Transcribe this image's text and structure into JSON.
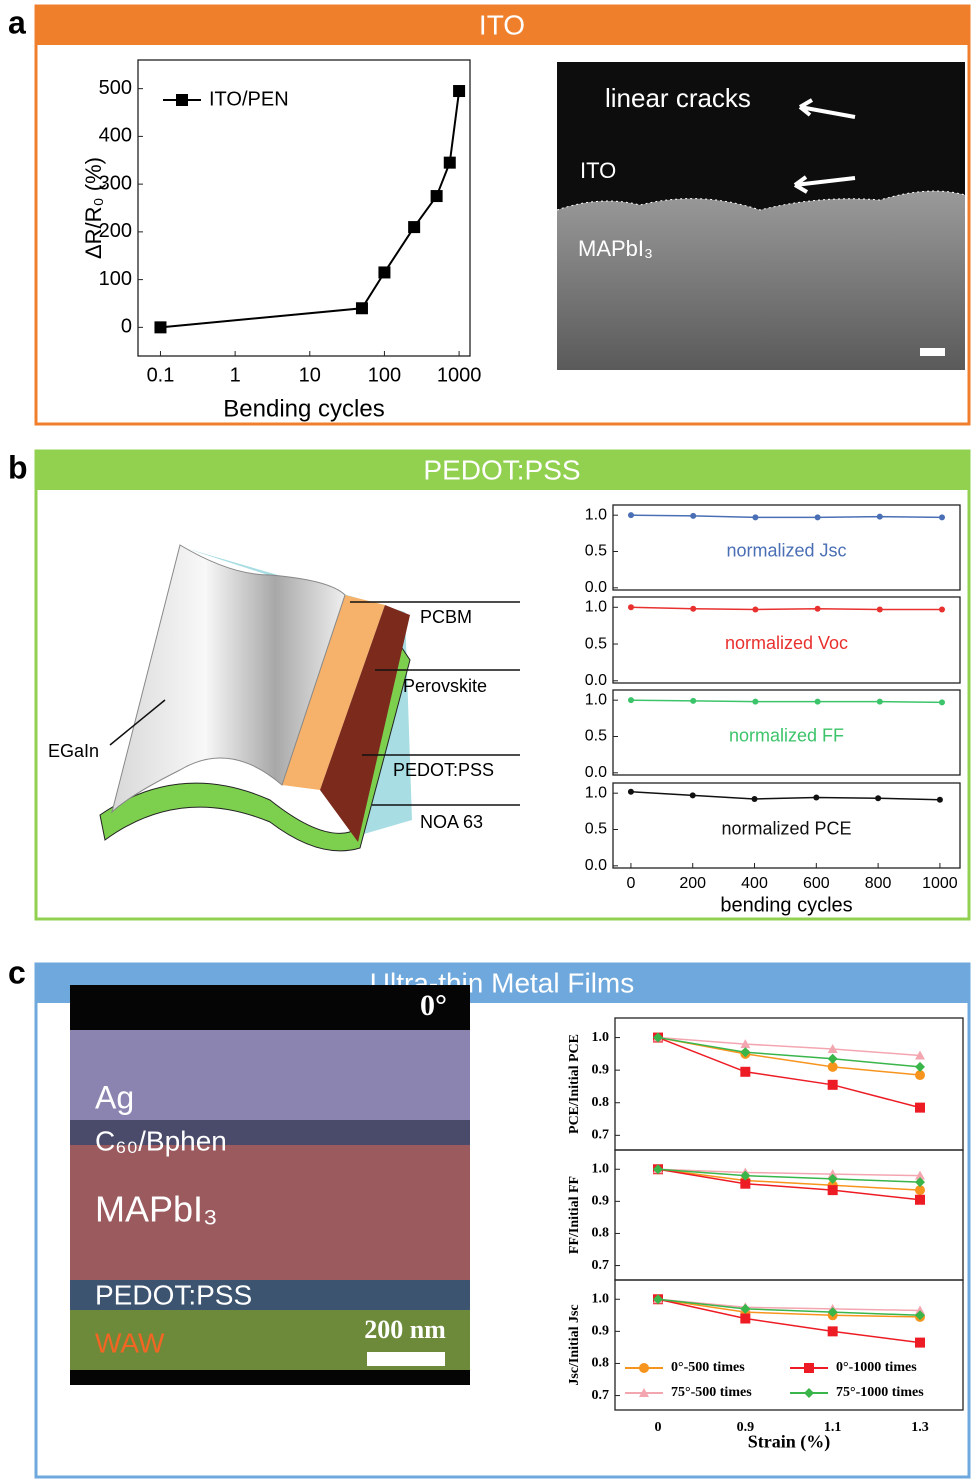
{
  "panels": [
    {
      "label": "a",
      "header": "ITO",
      "image_labels": [
        "linear cracks",
        "ITO",
        "MAPbI₃"
      ]
    },
    {
      "label": "b",
      "header": "PEDOT:PSS",
      "image_labels": [
        "PCBM",
        "Perovskite",
        "PEDOT:PSS",
        "NOA 63",
        "EGaIn"
      ]
    },
    {
      "label": "c",
      "header": "Ultra-thin Metal Films",
      "image_labels": [
        "0°",
        "Ag",
        "C₆₀/Bphen",
        "MAPbI₃",
        "PEDOT:PSS",
        "WAW",
        "200 nm"
      ]
    }
  ],
  "chart_data": [
    {
      "type": "line",
      "xscale": "log",
      "x": [
        0.1,
        50,
        100,
        250,
        500,
        750,
        1000
      ],
      "series": [
        {
          "name": "ITO/PEN",
          "color": "#000000",
          "marker": "square",
          "values": [
            0,
            40,
            115,
            210,
            275,
            345,
            495
          ]
        }
      ],
      "xlim": [
        0.05,
        1400
      ],
      "xticks": [
        0.1,
        1,
        10,
        100,
        1000
      ],
      "ylim": [
        -60,
        560
      ],
      "yticks": [
        0,
        100,
        200,
        300,
        400,
        500
      ],
      "x_label": "Bending cycles",
      "y_label": "ΔR/R₀ (%)",
      "legend": "upper left"
    },
    {
      "type": "line",
      "series": [
        {
          "color": "#4a6fb5",
          "marker": "circle",
          "values": [
            1.0,
            0.99,
            0.97,
            0.97,
            0.98,
            0.97
          ]
        }
      ],
      "annotation": "normalized Jsc",
      "ylim": [
        -0.03,
        1.14
      ],
      "yticks": [
        {
          "value": 0,
          "label": "0.0"
        },
        0.5,
        {
          "value": 1,
          "label": "1.0"
        }
      ]
    },
    {
      "type": "line",
      "series": [
        {
          "color": "#e8302e",
          "marker": "circle",
          "values": [
            1.0,
            0.98,
            0.97,
            0.98,
            0.97,
            0.97
          ]
        }
      ],
      "annotation": "normalized Voc",
      "ylim": [
        -0.03,
        1.14
      ],
      "yticks": [
        {
          "value": 0,
          "label": "0.0"
        },
        0.5,
        {
          "value": 1,
          "label": "1.0"
        }
      ]
    },
    {
      "type": "line",
      "series": [
        {
          "color": "#3cc46a",
          "marker": "circle",
          "values": [
            1.0,
            0.99,
            0.98,
            0.98,
            0.98,
            0.97
          ]
        }
      ],
      "annotation": "normalized FF",
      "ylim": [
        -0.03,
        1.14
      ],
      "yticks": [
        {
          "value": 0,
          "label": "0.0"
        },
        0.5,
        {
          "value": 1,
          "label": "1.0"
        }
      ]
    },
    {
      "type": "line",
      "x": [
        0,
        200,
        400,
        600,
        800,
        1000
      ],
      "series": [
        {
          "color": "#111111",
          "marker": "circle",
          "values": [
            1.02,
            0.97,
            0.92,
            0.94,
            0.93,
            0.91
          ]
        }
      ],
      "annotation": "normalized PCE",
      "xlim": [
        -58,
        1065
      ],
      "xticks": [
        0,
        200,
        400,
        600,
        800,
        1000
      ],
      "ylim": [
        -0.03,
        1.14
      ],
      "yticks": [
        {
          "value": 0,
          "label": "0.0"
        },
        0.5,
        {
          "value": 1,
          "label": "1.0"
        }
      ],
      "x_label": "bending cycles"
    },
    {
      "type": "line",
      "series": [
        {
          "color": "#f7941d",
          "marker": "circle",
          "values": [
            1,
            0.95,
            0.91,
            0.885
          ]
        },
        {
          "color": "#ed1c24",
          "marker": "square",
          "values": [
            1,
            0.895,
            0.855,
            0.785
          ]
        },
        {
          "color": "#f4a6b0",
          "marker": "triangle",
          "values": [
            1,
            0.98,
            0.965,
            0.945
          ]
        },
        {
          "color": "#39b54a",
          "marker": "diamond",
          "values": [
            1,
            0.955,
            0.935,
            0.91
          ]
        }
      ],
      "ylim": [
        0.655,
        1.06
      ],
      "yticks": [
        0.7,
        0.8,
        0.9,
        {
          "value": 1,
          "label": "1.0"
        }
      ],
      "y_label": "PCE/Initial PCE"
    },
    {
      "type": "line",
      "series": [
        {
          "color": "#f7941d",
          "marker": "circle",
          "values": [
            1,
            0.965,
            0.95,
            0.935
          ]
        },
        {
          "color": "#ed1c24",
          "marker": "square",
          "values": [
            1,
            0.955,
            0.935,
            0.905
          ]
        },
        {
          "color": "#f4a6b0",
          "marker": "triangle",
          "values": [
            1,
            0.99,
            0.985,
            0.98
          ]
        },
        {
          "color": "#39b54a",
          "marker": "diamond",
          "values": [
            1,
            0.98,
            0.97,
            0.96
          ]
        }
      ],
      "ylim": [
        0.655,
        1.06
      ],
      "yticks": [
        0.7,
        0.8,
        0.9,
        {
          "value": 1,
          "label": "1.0"
        }
      ],
      "y_label": "FF/Initial FF"
    },
    {
      "type": "line",
      "categories": [
        "0",
        "0.9",
        "1.1",
        "1.3"
      ],
      "series": [
        {
          "name": "0°-500 times",
          "color": "#f7941d",
          "marker": "circle",
          "values": [
            1,
            0.96,
            0.95,
            0.945
          ]
        },
        {
          "name": "0°-1000 times",
          "color": "#ed1c24",
          "marker": "square",
          "values": [
            1,
            0.94,
            0.9,
            0.865
          ]
        },
        {
          "name": "75°-500 times",
          "color": "#f4a6b0",
          "marker": "triangle",
          "values": [
            1,
            0.975,
            0.97,
            0.965
          ]
        },
        {
          "name": "75°-1000 times",
          "color": "#39b54a",
          "marker": "diamond",
          "values": [
            1,
            0.97,
            0.96,
            0.95
          ]
        }
      ],
      "ylim": [
        0.655,
        1.06
      ],
      "yticks": [
        0.7,
        0.8,
        0.9,
        {
          "value": 1,
          "label": "1.0"
        }
      ],
      "y_label": "Jsc/Initial Jsc",
      "x_label": "Strain (%)",
      "legend": "lower center"
    }
  ]
}
